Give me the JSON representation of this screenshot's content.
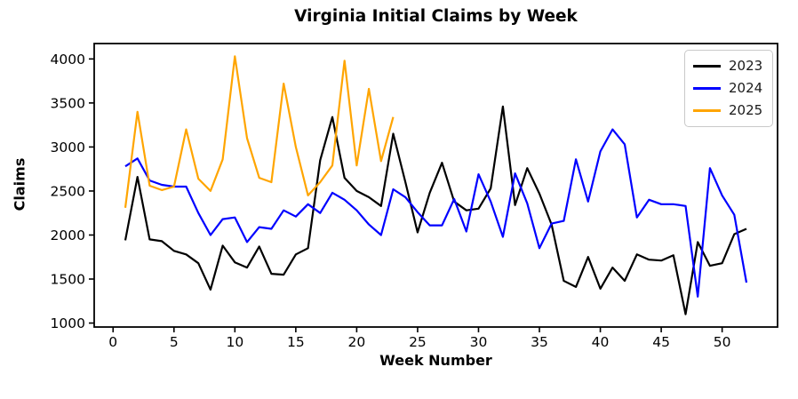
{
  "title": "Virginia Initial Claims by Week",
  "chart_data": {
    "type": "line",
    "title": "Virginia Initial Claims by Week",
    "xlabel": "Week Number",
    "ylabel": "Claims",
    "x": [
      1,
      2,
      3,
      4,
      5,
      6,
      7,
      8,
      9,
      10,
      11,
      12,
      13,
      14,
      15,
      16,
      17,
      18,
      19,
      20,
      21,
      22,
      23,
      24,
      25,
      26,
      27,
      28,
      29,
      30,
      31,
      32,
      33,
      34,
      35,
      36,
      37,
      38,
      39,
      40,
      41,
      42,
      43,
      44,
      45,
      46,
      47,
      48,
      49,
      50,
      51,
      52
    ],
    "series": [
      {
        "name": "2023",
        "color": "#000000",
        "values": [
          1940,
          2660,
          1950,
          1930,
          1820,
          1780,
          1680,
          1380,
          1880,
          1690,
          1630,
          1870,
          1560,
          1550,
          1780,
          1850,
          2850,
          3340,
          2650,
          2500,
          2430,
          2330,
          3150,
          2600,
          2030,
          2480,
          2820,
          2380,
          2280,
          2300,
          2530,
          3460,
          2340,
          2760,
          2470,
          2120,
          1480,
          1410,
          1750,
          1390,
          1630,
          1480,
          1780,
          1720,
          1710,
          1770,
          1100,
          1920,
          1650,
          1680,
          2010,
          2070
        ]
      },
      {
        "name": "2024",
        "color": "#0000ff",
        "values": [
          2780,
          2870,
          2620,
          2570,
          2550,
          2550,
          2250,
          2000,
          2180,
          2200,
          1920,
          2090,
          2070,
          2280,
          2210,
          2350,
          2250,
          2480,
          2400,
          2280,
          2120,
          2000,
          2520,
          2430,
          2260,
          2110,
          2110,
          2410,
          2040,
          2690,
          2380,
          1980,
          2700,
          2360,
          1850,
          2130,
          2160,
          2860,
          2380,
          2950,
          3200,
          3030,
          2200,
          2400,
          2350,
          2350,
          2330,
          1300,
          2760,
          2450,
          2230,
          1460
        ]
      },
      {
        "name": "2025",
        "color": "#ffa500",
        "values": [
          2310,
          3400,
          2560,
          2510,
          2550,
          3200,
          2640,
          2500,
          2860,
          4030,
          3100,
          2650,
          2600,
          3720,
          3000,
          2450,
          2600,
          2790,
          3980,
          2790,
          3660,
          2840,
          3340
        ]
      }
    ],
    "xticks": [
      0,
      5,
      10,
      15,
      20,
      25,
      30,
      35,
      40,
      45,
      50
    ],
    "yticks": [
      1000,
      1500,
      2000,
      2500,
      3000,
      3500,
      4000
    ],
    "xlim": [
      -1.55,
      54.55
    ],
    "ylim": [
      955,
      4175
    ],
    "grid": false,
    "legend_position": "upper right",
    "legend_labels": [
      "2023",
      "2024",
      "2025"
    ]
  }
}
